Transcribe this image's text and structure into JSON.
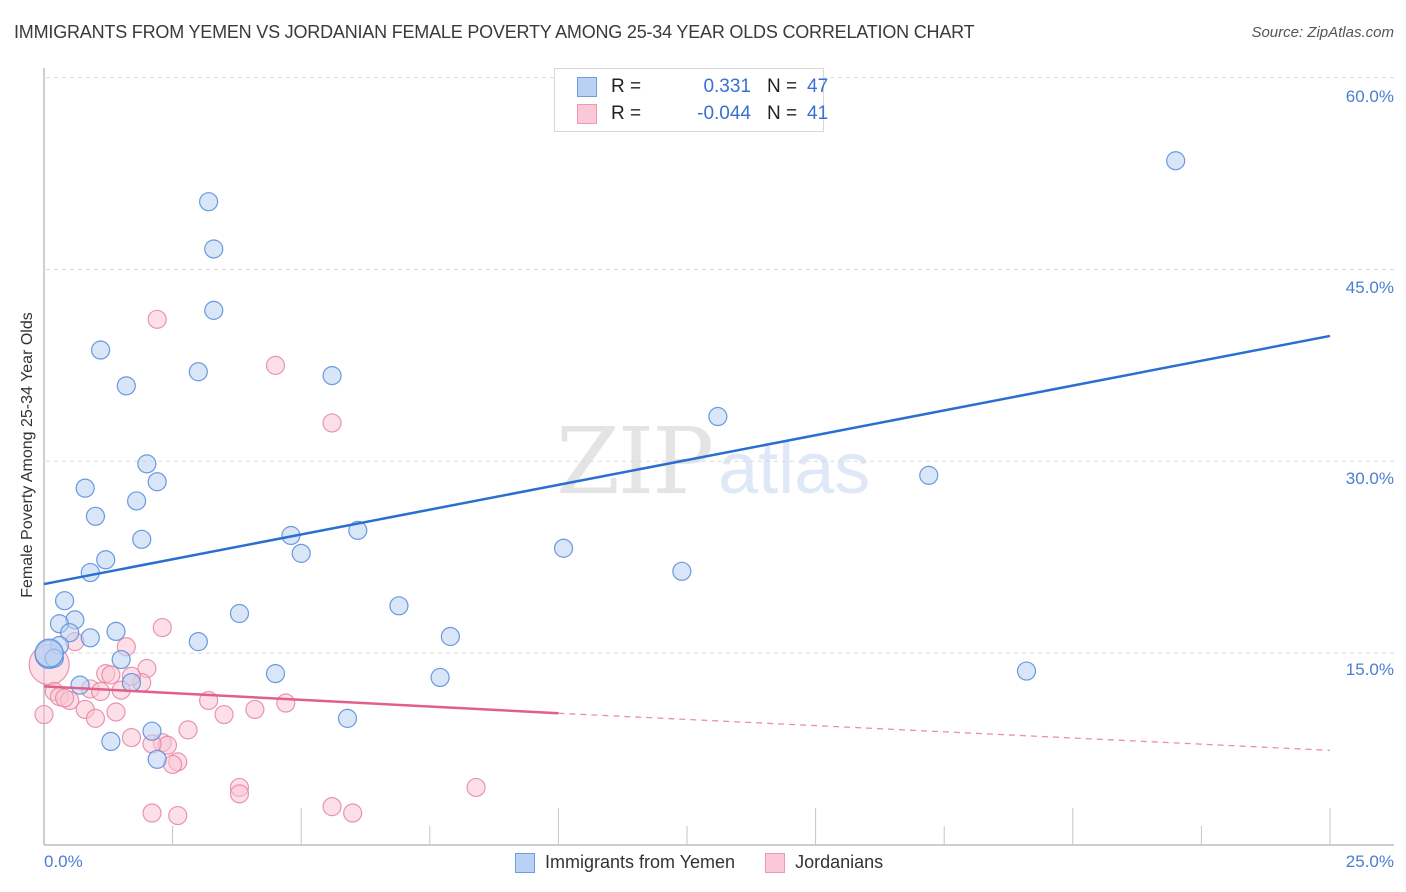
{
  "header": {
    "title": "IMMIGRANTS FROM YEMEN VS JORDANIAN FEMALE POVERTY AMONG 25-34 YEAR OLDS CORRELATION CHART",
    "source": "Source: ZipAtlas.com"
  },
  "legend": {
    "rows": [
      {
        "r_label": "R =",
        "r_value": "0.331",
        "n_label": "N =",
        "n_value": "47"
      },
      {
        "r_label": "R =",
        "r_value": "-0.044",
        "n_label": "N =",
        "n_value": "41"
      }
    ]
  },
  "axes": {
    "y_label": "Female Poverty Among 25-34 Year Olds",
    "y_ticks": [
      "60.0%",
      "45.0%",
      "30.0%",
      "15.0%"
    ],
    "x_ticks": [
      "0.0%",
      "25.0%"
    ]
  },
  "bottom_legend": {
    "series_1": "Immigrants from Yemen",
    "series_2": "Jordanians"
  },
  "watermark": {
    "zip": "ZIP",
    "atlas": "atlas"
  },
  "colors": {
    "yemen_fill": "#b9d2f3",
    "yemen_stroke": "#5b8fdb",
    "yemen_line": "#2a6fd0",
    "jordan_fill": "#f9c4d4",
    "jordan_stroke": "#e88aa8",
    "jordan_line": "#e0608a",
    "tick_text": "#4a7fd0"
  },
  "chart_data": {
    "type": "scatter",
    "title": "IMMIGRANTS FROM YEMEN VS JORDANIAN FEMALE POVERTY AMONG 25-34 YEAR OLDS CORRELATION CHART",
    "xlabel": "",
    "ylabel": "Female Poverty Among 25-34 Year Olds",
    "xlim": [
      0,
      25
    ],
    "ylim": [
      0,
      62
    ],
    "y_gridlines": [
      15,
      30,
      45,
      60
    ],
    "grid": true,
    "legend_position": "top-center",
    "series": [
      {
        "name": "Immigrants from Yemen",
        "R": 0.331,
        "N": 47,
        "trend": {
          "x": [
            0,
            25
          ],
          "y": [
            20.4,
            39.8
          ]
        },
        "points": [
          [
            22.0,
            53.5
          ],
          [
            3.2,
            50.3
          ],
          [
            3.3,
            46.6
          ],
          [
            3.3,
            41.8
          ],
          [
            1.1,
            38.7
          ],
          [
            3.0,
            37.0
          ],
          [
            5.6,
            36.7
          ],
          [
            1.6,
            35.9
          ],
          [
            13.1,
            33.5
          ],
          [
            2.0,
            29.8
          ],
          [
            17.2,
            28.9
          ],
          [
            2.2,
            28.4
          ],
          [
            0.8,
            27.9
          ],
          [
            1.8,
            26.9
          ],
          [
            1.0,
            25.7
          ],
          [
            6.1,
            24.6
          ],
          [
            4.8,
            24.2
          ],
          [
            1.9,
            23.9
          ],
          [
            10.1,
            23.2
          ],
          [
            5.0,
            22.8
          ],
          [
            1.2,
            22.3
          ],
          [
            0.9,
            21.3
          ],
          [
            12.4,
            21.4
          ],
          [
            0.4,
            19.1
          ],
          [
            6.9,
            18.7
          ],
          [
            3.8,
            18.1
          ],
          [
            0.6,
            17.6
          ],
          [
            0.3,
            17.3
          ],
          [
            0.5,
            16.6
          ],
          [
            1.4,
            16.7
          ],
          [
            7.9,
            16.3
          ],
          [
            0.9,
            16.2
          ],
          [
            3.0,
            15.9
          ],
          [
            0.3,
            15.6
          ],
          [
            0.1,
            14.9
          ],
          [
            0.2,
            14.6
          ],
          [
            1.5,
            14.5
          ],
          [
            4.5,
            13.4
          ],
          [
            19.1,
            13.6
          ],
          [
            7.7,
            13.1
          ],
          [
            0.7,
            12.5
          ],
          [
            1.7,
            12.7
          ],
          [
            5.9,
            9.9
          ],
          [
            2.1,
            8.9
          ],
          [
            1.3,
            8.1
          ],
          [
            2.2,
            6.7
          ],
          [
            0.1,
            15.0
          ]
        ]
      },
      {
        "name": "Jordanians",
        "R": -0.044,
        "N": 41,
        "trend": {
          "x": [
            0,
            10
          ],
          "y": [
            12.4,
            10.3
          ],
          "dashed_extension": {
            "x": [
              10,
              25
            ],
            "y": [
              10.3,
              7.4
            ]
          }
        },
        "points": [
          [
            2.2,
            41.1
          ],
          [
            4.5,
            37.5
          ],
          [
            5.6,
            33.0
          ],
          [
            2.3,
            17.0
          ],
          [
            0.6,
            15.9
          ],
          [
            1.6,
            15.5
          ],
          [
            0.1,
            14.1
          ],
          [
            2.0,
            13.8
          ],
          [
            1.2,
            13.4
          ],
          [
            1.3,
            13.3
          ],
          [
            1.9,
            12.7
          ],
          [
            0.9,
            12.2
          ],
          [
            0.2,
            12.0
          ],
          [
            1.5,
            12.1
          ],
          [
            1.1,
            12.0
          ],
          [
            0.3,
            11.6
          ],
          [
            0.5,
            11.3
          ],
          [
            0.4,
            11.5
          ],
          [
            3.2,
            11.3
          ],
          [
            4.7,
            11.1
          ],
          [
            4.1,
            10.6
          ],
          [
            0.8,
            10.6
          ],
          [
            1.4,
            10.4
          ],
          [
            3.5,
            10.2
          ],
          [
            1.0,
            9.9
          ],
          [
            2.8,
            9.0
          ],
          [
            1.7,
            8.4
          ],
          [
            2.3,
            8.0
          ],
          [
            2.4,
            7.8
          ],
          [
            2.1,
            7.9
          ],
          [
            2.6,
            6.5
          ],
          [
            2.5,
            6.3
          ],
          [
            3.8,
            4.5
          ],
          [
            3.8,
            4.0
          ],
          [
            8.4,
            4.5
          ],
          [
            5.6,
            3.0
          ],
          [
            2.1,
            2.5
          ],
          [
            2.6,
            2.3
          ],
          [
            6.0,
            2.5
          ],
          [
            1.7,
            13.2
          ],
          [
            0.0,
            10.2
          ]
        ]
      }
    ]
  }
}
